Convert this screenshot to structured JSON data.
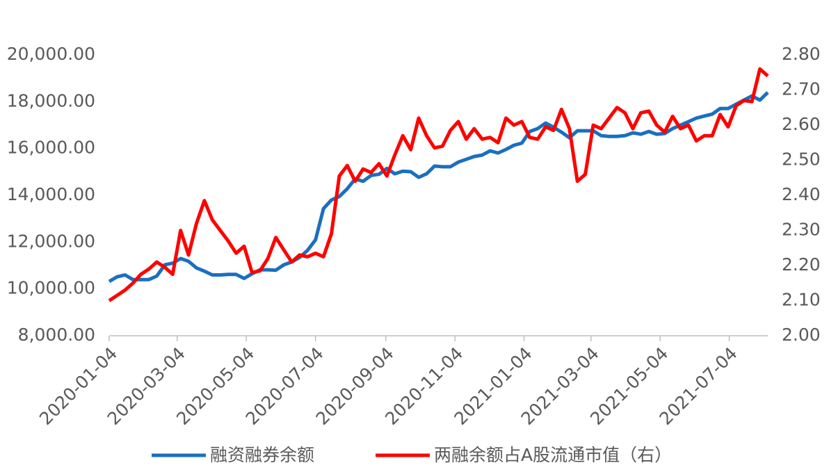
{
  "chart_data": {
    "type": "line",
    "x": [
      "2020-01-04",
      "2020-01-11",
      "2020-01-18",
      "2020-01-25",
      "2020-02-01",
      "2020-02-08",
      "2020-02-15",
      "2020-02-22",
      "2020-02-29",
      "2020-03-07",
      "2020-03-14",
      "2020-03-21",
      "2020-03-28",
      "2020-04-04",
      "2020-04-11",
      "2020-04-18",
      "2020-04-25",
      "2020-05-02",
      "2020-05-09",
      "2020-05-16",
      "2020-05-23",
      "2020-05-30",
      "2020-06-06",
      "2020-06-13",
      "2020-06-20",
      "2020-06-27",
      "2020-07-04",
      "2020-07-11",
      "2020-07-18",
      "2020-07-25",
      "2020-08-01",
      "2020-08-08",
      "2020-08-15",
      "2020-08-22",
      "2020-08-29",
      "2020-09-05",
      "2020-09-12",
      "2020-09-19",
      "2020-09-26",
      "2020-10-03",
      "2020-10-10",
      "2020-10-17",
      "2020-10-24",
      "2020-10-31",
      "2020-11-07",
      "2020-11-14",
      "2020-11-21",
      "2020-11-28",
      "2020-12-05",
      "2020-12-12",
      "2020-12-19",
      "2020-12-26",
      "2021-01-02",
      "2021-01-09",
      "2021-01-16",
      "2021-01-23",
      "2021-01-30",
      "2021-02-06",
      "2021-02-13",
      "2021-02-20",
      "2021-02-27",
      "2021-03-06",
      "2021-03-13",
      "2021-03-20",
      "2021-03-27",
      "2021-04-03",
      "2021-04-10",
      "2021-04-17",
      "2021-04-24",
      "2021-05-01",
      "2021-05-08",
      "2021-05-15",
      "2021-05-22",
      "2021-05-29",
      "2021-06-05",
      "2021-06-12",
      "2021-06-19",
      "2021-06-26",
      "2021-07-03",
      "2021-07-10",
      "2021-07-17",
      "2021-07-24",
      "2021-07-31",
      "2021-08-07"
    ],
    "series": [
      {
        "name": "融资融券余额",
        "color": "#1a6fc0",
        "values": [
          10320,
          10520,
          10600,
          10400,
          10400,
          10400,
          10550,
          11030,
          11100,
          11300,
          11180,
          10900,
          10760,
          10600,
          10600,
          10620,
          10620,
          10450,
          10650,
          10820,
          10820,
          10800,
          11030,
          11150,
          11350,
          11650,
          12100,
          13430,
          13800,
          13950,
          14280,
          14700,
          14600,
          14850,
          14900,
          15150,
          14920,
          15030,
          15010,
          14770,
          14920,
          15250,
          15220,
          15220,
          15420,
          15540,
          15660,
          15720,
          15900,
          15810,
          15960,
          16140,
          16230,
          16730,
          16850,
          17090,
          16910,
          16700,
          16460,
          16760,
          16760,
          16760,
          16550,
          16520,
          16520,
          16550,
          16670,
          16610,
          16730,
          16610,
          16640,
          16850,
          17000,
          17150,
          17300,
          17390,
          17470,
          17710,
          17710,
          17890,
          18070,
          18250,
          18070,
          18400
        ]
      },
      {
        "name": "两融余额占A股流通市值（右）",
        "color": "#ff0000",
        "axis": "y2",
        "values": [
          2.1,
          2.115,
          2.13,
          2.15,
          2.175,
          2.19,
          2.21,
          2.195,
          2.175,
          2.3,
          2.23,
          2.32,
          2.385,
          2.33,
          2.3,
          2.27,
          2.235,
          2.255,
          2.18,
          2.185,
          2.22,
          2.28,
          2.245,
          2.21,
          2.23,
          2.225,
          2.235,
          2.225,
          2.29,
          2.455,
          2.485,
          2.44,
          2.475,
          2.465,
          2.49,
          2.455,
          2.515,
          2.57,
          2.53,
          2.62,
          2.57,
          2.535,
          2.54,
          2.585,
          2.61,
          2.56,
          2.59,
          2.56,
          2.565,
          2.55,
          2.62,
          2.6,
          2.61,
          2.565,
          2.56,
          2.595,
          2.585,
          2.645,
          2.59,
          2.44,
          2.46,
          2.6,
          2.59,
          2.62,
          2.65,
          2.635,
          2.59,
          2.635,
          2.64,
          2.6,
          2.58,
          2.625,
          2.59,
          2.6,
          2.555,
          2.57,
          2.57,
          2.63,
          2.595,
          2.655,
          2.67,
          2.667,
          2.76,
          2.74
        ]
      }
    ],
    "xlim": [
      "2020-01-04",
      "2021-08-07"
    ],
    "xticks": [
      "2020-01-04",
      "2020-03-04",
      "2020-05-04",
      "2020-07-04",
      "2020-09-04",
      "2020-11-04",
      "2021-01-04",
      "2021-03-04",
      "2021-05-04",
      "2021-07-04"
    ],
    "ylim": [
      8000,
      20000
    ],
    "yticks": [
      {
        "value": 8000,
        "label": "8,000.00"
      },
      {
        "value": 10000,
        "label": "10,000.00"
      },
      {
        "value": 12000,
        "label": "12,000.00"
      },
      {
        "value": 14000,
        "label": "14,000.00"
      },
      {
        "value": 16000,
        "label": "16,000.00"
      },
      {
        "value": 18000,
        "label": "18,000.00"
      },
      {
        "value": 20000,
        "label": "20,000.00"
      }
    ],
    "y2lim": [
      2.0,
      2.8
    ],
    "y2ticks": [
      {
        "value": 2.0,
        "label": "2.00"
      },
      {
        "value": 2.1,
        "label": "2.10"
      },
      {
        "value": 2.2,
        "label": "2.20"
      },
      {
        "value": 2.3,
        "label": "2.30"
      },
      {
        "value": 2.4,
        "label": "2.40"
      },
      {
        "value": 2.5,
        "label": "2.50"
      },
      {
        "value": 2.6,
        "label": "2.60"
      },
      {
        "value": 2.7,
        "label": "2.70"
      },
      {
        "value": 2.8,
        "label": "2.80"
      }
    ],
    "legend": "bottom"
  }
}
